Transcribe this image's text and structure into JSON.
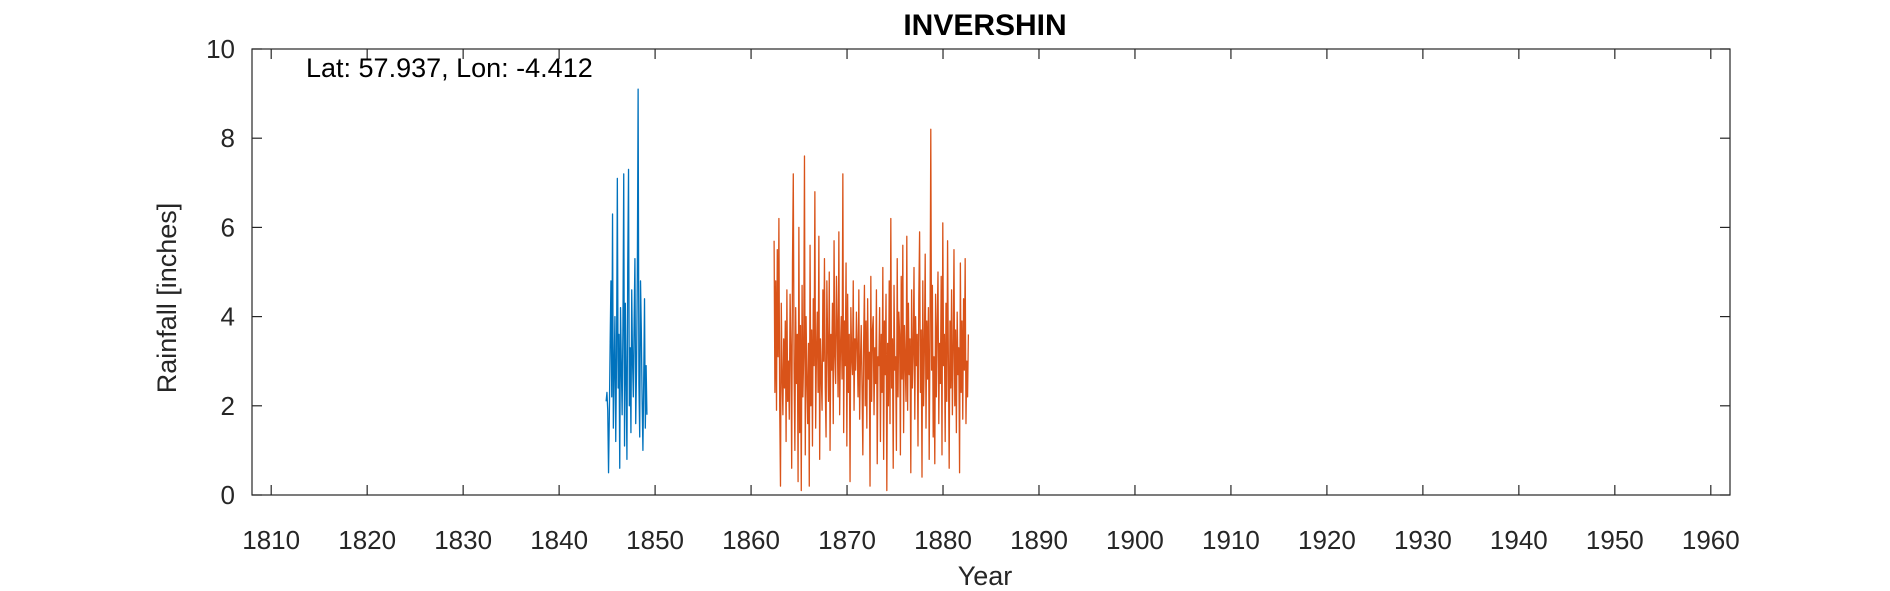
{
  "chart_data": {
    "type": "line",
    "title": "INVERSHIN",
    "annotation": "Lat: 57.937, Lon: -4.412",
    "xlabel": "Year",
    "ylabel": "Rainfall [inches]",
    "xlim": [
      1808,
      1962
    ],
    "ylim": [
      0,
      10
    ],
    "xticks": [
      1810,
      1820,
      1830,
      1840,
      1850,
      1860,
      1870,
      1880,
      1890,
      1900,
      1910,
      1920,
      1930,
      1940,
      1950,
      1960
    ],
    "yticks": [
      0,
      2,
      4,
      6,
      8,
      10
    ],
    "grid": false,
    "box": true,
    "colors": {
      "series1": "#0072BD",
      "series2": "#D95319",
      "axis": "#262626"
    },
    "series": [
      {
        "x_start": 1844.9,
        "x_step": 0.0833,
        "values": [
          2.1,
          2.3,
          1.9,
          0.5,
          1.8,
          3.4,
          4.8,
          2.2,
          6.3,
          1.5,
          2.8,
          4.0,
          1.2,
          3.1,
          7.1,
          2.4,
          3.6,
          0.6,
          4.2,
          2.9,
          1.8,
          3.8,
          7.2,
          1.1,
          4.3,
          2.6,
          0.8,
          5.1,
          7.3,
          2.0,
          3.3,
          1.4,
          4.6,
          3.0,
          2.2,
          3.9,
          5.3,
          1.6,
          2.8,
          4.9,
          9.1,
          2.5,
          1.3,
          4.8,
          3.7,
          2.1,
          1.0,
          2.6,
          4.4,
          1.5,
          2.9,
          1.8
        ]
      },
      {
        "x_start": 1862.4,
        "x_step": 0.0833,
        "values": [
          5.7,
          2.3,
          4.8,
          1.9,
          5.5,
          3.1,
          6.2,
          2.0,
          0.2,
          4.3,
          2.7,
          1.8,
          3.5,
          2.4,
          3.9,
          1.2,
          4.6,
          2.1,
          3.0,
          1.7,
          4.5,
          3.3,
          0.6,
          5.2,
          7.2,
          2.8,
          1.0,
          4.2,
          2.5,
          3.6,
          0.3,
          6.0,
          1.4,
          3.8,
          0.1,
          4.7,
          2.2,
          3.1,
          7.6,
          0.9,
          4.0,
          2.6,
          1.6,
          3.4,
          0.2,
          5.6,
          2.0,
          3.7,
          1.1,
          4.4,
          2.9,
          6.8,
          1.5,
          3.2,
          4.1,
          2.3,
          5.8,
          0.8,
          3.5,
          2.7,
          1.9,
          4.6,
          3.0,
          5.3,
          2.4,
          1.3,
          4.8,
          3.4,
          2.1,
          5.0,
          1.0,
          3.6,
          2.8,
          4.3,
          1.6,
          5.7,
          3.1,
          2.5,
          4.9,
          3.7,
          2.2,
          5.9,
          1.8,
          3.3,
          4.0,
          2.6,
          7.2,
          1.4,
          3.9,
          2.9,
          5.2,
          1.1,
          4.5,
          2.3,
          3.6,
          0.3,
          4.2,
          3.1,
          2.7,
          4.8,
          1.9,
          3.5,
          2.8,
          4.1,
          3.3,
          2.2,
          4.6,
          1.7,
          3.0,
          3.8,
          2.4,
          0.9,
          3.4,
          4.7,
          2.0,
          3.9,
          1.5,
          4.4,
          2.6,
          3.2,
          0.2,
          4.9,
          2.1,
          3.7,
          4.0,
          1.8,
          3.3,
          2.5,
          4.6,
          0.7,
          3.1,
          2.9,
          4.2,
          1.2,
          3.6,
          2.3,
          5.1,
          0.8,
          3.9,
          2.7,
          4.5,
          0.1,
          3.4,
          2.0,
          4.8,
          1.6,
          6.2,
          2.4,
          3.5,
          0.6,
          4.7,
          2.8,
          3.1,
          1.0,
          5.3,
          2.2,
          4.1,
          3.6,
          0.9,
          4.9,
          2.6,
          5.6,
          1.4,
          3.8,
          3.0,
          2.1,
          5.8,
          1.9,
          4.3,
          2.7,
          3.5,
          0.5,
          4.6,
          2.4,
          3.2,
          5.1,
          1.7,
          4.0,
          2.9,
          3.6,
          1.1,
          4.4,
          5.9,
          2.3,
          3.7,
          0.4,
          4.8,
          2.0,
          3.3,
          5.4,
          1.5,
          3.9,
          2.6,
          4.2,
          0.8,
          3.5,
          8.2,
          2.8,
          4.7,
          1.3,
          3.1,
          0.7,
          4.5,
          2.2,
          3.8,
          5.0,
          1.6,
          3.4,
          2.5,
          4.9,
          0.9,
          6.1,
          2.9,
          3.6,
          1.2,
          4.3,
          2.1,
          5.7,
          3.0,
          0.6,
          3.9,
          2.4,
          4.6,
          1.8,
          3.2,
          5.5,
          2.0,
          3.7,
          1.4,
          4.1,
          2.7,
          3.3,
          0.5,
          5.2,
          2.3,
          3.9,
          1.7,
          4.4,
          2.8,
          5.3,
          1.6,
          3.0,
          2.2,
          3.6
        ]
      }
    ]
  }
}
